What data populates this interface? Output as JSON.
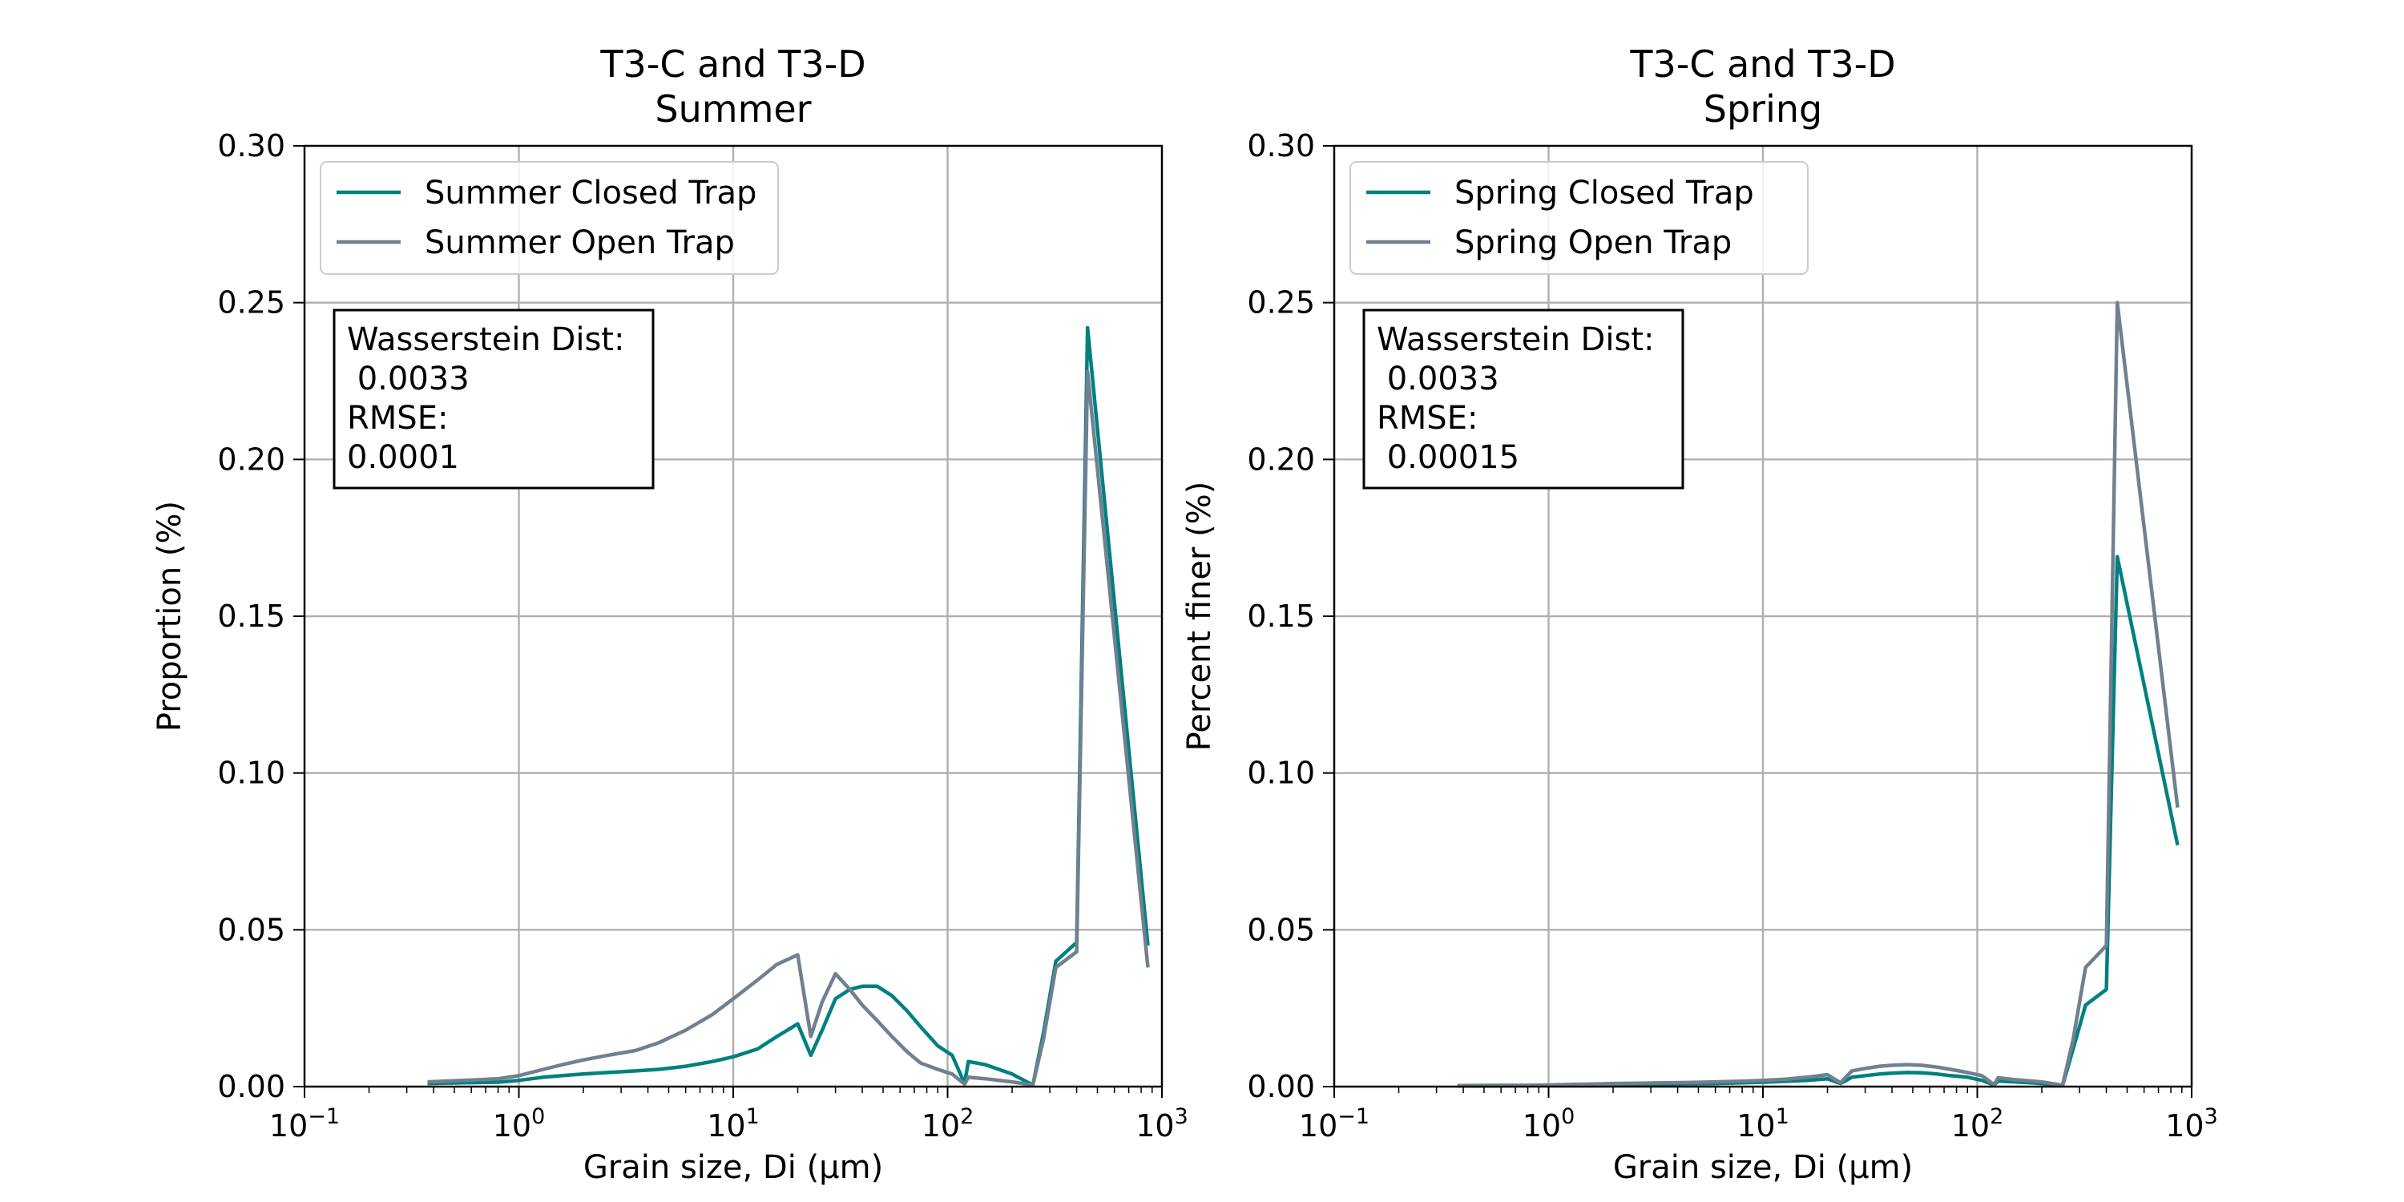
{
  "chart_data": [
    {
      "type": "line",
      "title": "T3-C and T3-D",
      "subtitle": "Summer",
      "xlabel": "Grain size, Di (μm)",
      "ylabel": "Proportion (%)",
      "xscale": "log",
      "xlim": [
        0.1,
        1000
      ],
      "ylim": [
        0.0,
        0.3
      ],
      "xticks": [
        {
          "value": 0.1,
          "base": "10",
          "exp": "−1"
        },
        {
          "value": 1,
          "base": "10",
          "exp": "0"
        },
        {
          "value": 10,
          "base": "10",
          "exp": "1"
        },
        {
          "value": 100,
          "base": "10",
          "exp": "2"
        },
        {
          "value": 1000,
          "base": "10",
          "exp": "3"
        }
      ],
      "yticks": [
        "0.00",
        "0.05",
        "0.10",
        "0.15",
        "0.20",
        "0.25",
        "0.30"
      ],
      "grid": true,
      "legend_position": "top-left",
      "annotation": [
        "Wasserstein Dist:",
        " 0.0033",
        "RMSE:",
        "0.0001"
      ],
      "series": [
        {
          "name": "Summer Closed Trap",
          "color": "#008080",
          "x": [
            0.375,
            0.55,
            0.8,
            1.0,
            1.3,
            1.6,
            2,
            2.6,
            3.5,
            4.5,
            6,
            8,
            10,
            13,
            16,
            20,
            23,
            26,
            30,
            35,
            40,
            47,
            55,
            65,
            75,
            90,
            105,
            120,
            125,
            150,
            200,
            250,
            280,
            320,
            400,
            450,
            860
          ],
          "values": [
            0.001,
            0.0012,
            0.0014,
            0.002,
            0.003,
            0.0035,
            0.004,
            0.0045,
            0.005,
            0.0055,
            0.0065,
            0.008,
            0.0095,
            0.012,
            0.016,
            0.02,
            0.01,
            0.018,
            0.028,
            0.031,
            0.032,
            0.032,
            0.029,
            0.024,
            0.019,
            0.013,
            0.01,
            0.001,
            0.008,
            0.007,
            0.004,
            0.0005,
            0.017,
            0.04,
            0.046,
            0.242,
            0.045
          ]
        },
        {
          "name": "Summer Open Trap",
          "color": "#708090",
          "x": [
            0.375,
            0.55,
            0.8,
            1.0,
            1.3,
            1.6,
            2,
            2.6,
            3.5,
            4.5,
            6,
            8,
            10,
            13,
            16,
            20,
            23,
            26,
            30,
            35,
            40,
            47,
            55,
            65,
            75,
            90,
            105,
            120,
            125,
            150,
            200,
            250,
            280,
            320,
            400,
            450,
            860
          ],
          "values": [
            0.0015,
            0.002,
            0.0025,
            0.0035,
            0.0055,
            0.007,
            0.0085,
            0.01,
            0.0115,
            0.014,
            0.018,
            0.023,
            0.028,
            0.034,
            0.039,
            0.042,
            0.016,
            0.027,
            0.036,
            0.031,
            0.026,
            0.021,
            0.016,
            0.011,
            0.0075,
            0.0055,
            0.004,
            0.0008,
            0.003,
            0.0025,
            0.0015,
            0.0005,
            0.015,
            0.038,
            0.043,
            0.228,
            0.038
          ]
        }
      ]
    },
    {
      "type": "line",
      "title": "T3-C and T3-D",
      "subtitle": "Spring",
      "xlabel": "Grain size, Di (μm)",
      "ylabel": "Percent finer (%)",
      "xscale": "log",
      "xlim": [
        0.1,
        1000
      ],
      "ylim": [
        0.0,
        0.3
      ],
      "xticks": [
        {
          "value": 0.1,
          "base": "10",
          "exp": "−1"
        },
        {
          "value": 1,
          "base": "10",
          "exp": "0"
        },
        {
          "value": 10,
          "base": "10",
          "exp": "1"
        },
        {
          "value": 100,
          "base": "10",
          "exp": "2"
        },
        {
          "value": 1000,
          "base": "10",
          "exp": "3"
        }
      ],
      "yticks": [
        "0.00",
        "0.05",
        "0.10",
        "0.15",
        "0.20",
        "0.25",
        "0.30"
      ],
      "grid": true,
      "legend_position": "top-left",
      "annotation": [
        "Wasserstein Dist:",
        " 0.0033",
        "RMSE:",
        " 0.00015"
      ],
      "series": [
        {
          "name": "Spring Closed Trap",
          "color": "#008080",
          "x": [
            0.375,
            0.55,
            0.8,
            1.0,
            1.3,
            1.6,
            2,
            2.6,
            3.5,
            4.5,
            6,
            8,
            10,
            13,
            16,
            20,
            23,
            26,
            30,
            35,
            40,
            47,
            55,
            65,
            75,
            90,
            105,
            120,
            125,
            150,
            200,
            250,
            280,
            320,
            400,
            450,
            860
          ],
          "values": [
            0.0002,
            0.0002,
            0.0003,
            0.0003,
            0.0004,
            0.0005,
            0.0006,
            0.0007,
            0.0008,
            0.0009,
            0.001,
            0.0012,
            0.0014,
            0.0017,
            0.002,
            0.0025,
            0.001,
            0.003,
            0.0035,
            0.004,
            0.0043,
            0.0045,
            0.0044,
            0.004,
            0.0035,
            0.003,
            0.002,
            0.0005,
            0.0018,
            0.0015,
            0.001,
            0.0003,
            0.012,
            0.026,
            0.031,
            0.169,
            0.077
          ]
        },
        {
          "name": "Spring Open Trap",
          "color": "#708090",
          "x": [
            0.375,
            0.55,
            0.8,
            1.0,
            1.3,
            1.6,
            2,
            2.6,
            3.5,
            4.5,
            6,
            8,
            10,
            13,
            16,
            20,
            23,
            26,
            30,
            35,
            40,
            47,
            55,
            65,
            75,
            90,
            105,
            120,
            125,
            150,
            200,
            250,
            280,
            320,
            400,
            450,
            860
          ],
          "values": [
            0.0003,
            0.0004,
            0.0004,
            0.0005,
            0.0007,
            0.0008,
            0.001,
            0.0011,
            0.0012,
            0.0013,
            0.0015,
            0.0017,
            0.002,
            0.0024,
            0.003,
            0.0038,
            0.0012,
            0.005,
            0.0058,
            0.0065,
            0.0068,
            0.007,
            0.0068,
            0.0062,
            0.0055,
            0.0045,
            0.0035,
            0.0006,
            0.0028,
            0.0022,
            0.0015,
            0.0004,
            0.015,
            0.038,
            0.045,
            0.25,
            0.089
          ]
        }
      ]
    }
  ]
}
